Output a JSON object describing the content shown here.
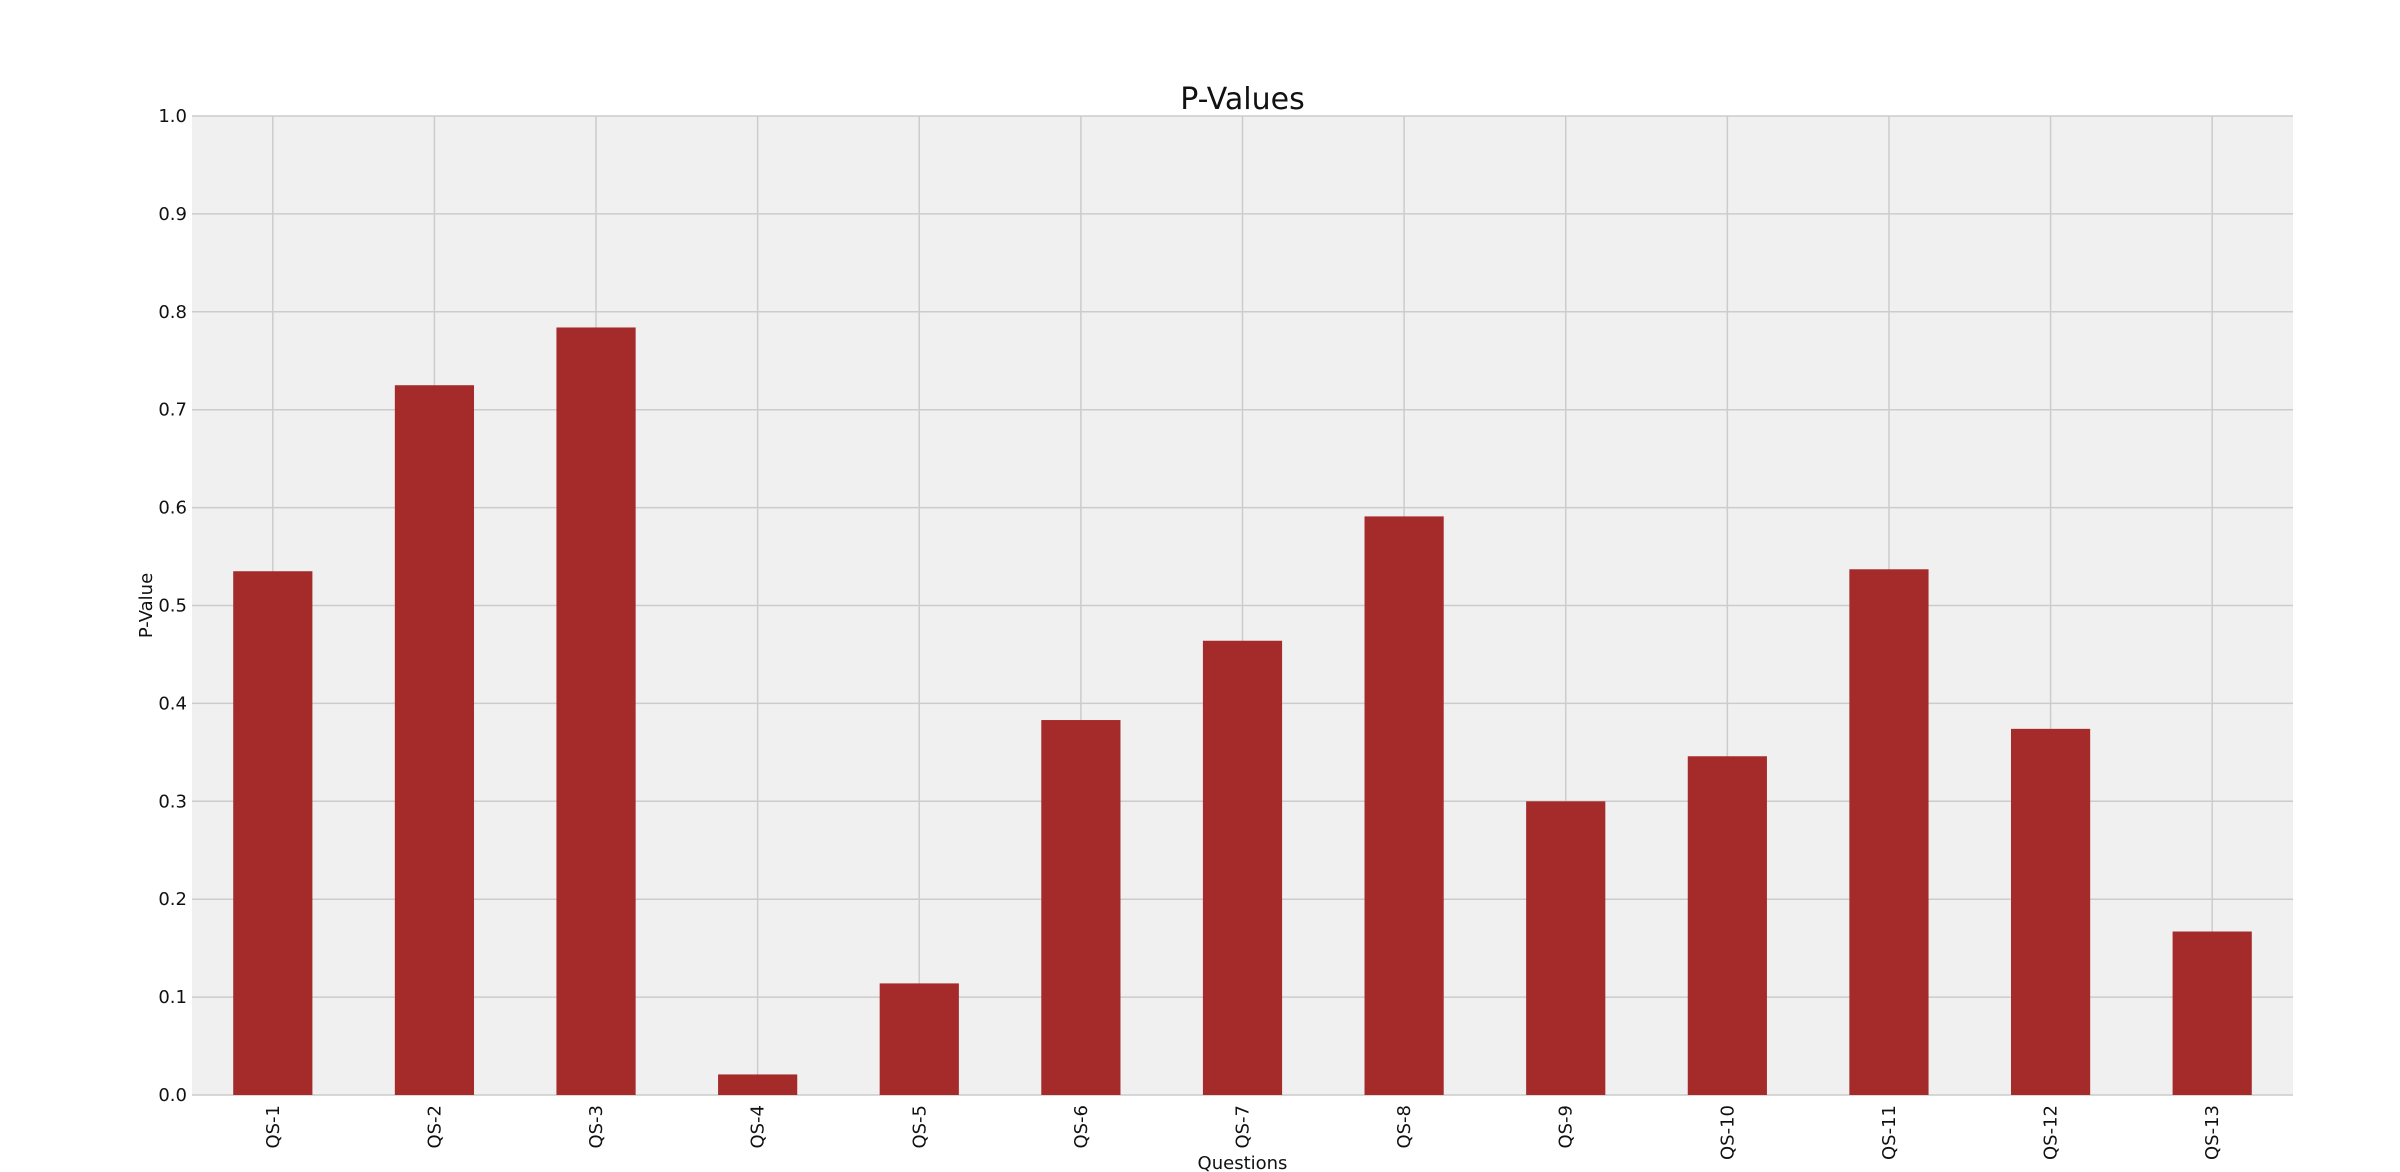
{
  "chart_data": {
    "type": "bar",
    "title": "P-Values",
    "xlabel": "Questions",
    "ylabel": "P-Value",
    "ylim": [
      0,
      1.0
    ],
    "yticks": [
      "0.0",
      "0.1",
      "0.2",
      "0.3",
      "0.4",
      "0.5",
      "0.6",
      "0.7",
      "0.8",
      "0.9",
      "1.0"
    ],
    "grid": true,
    "categories": [
      "QS-1",
      "QS-2",
      "QS-3",
      "QS-4",
      "QS-5",
      "QS-6",
      "QS-7",
      "QS-8",
      "QS-9",
      "QS-10",
      "QS-11",
      "QS-12",
      "QS-13"
    ],
    "values": [
      0.535,
      0.725,
      0.784,
      0.021,
      0.114,
      0.383,
      0.464,
      0.591,
      0.3,
      0.346,
      0.537,
      0.374,
      0.167
    ],
    "bar_color": "#a52a2a",
    "plot_bg": "#f0f0f0",
    "grid_color": "#cccccc"
  }
}
